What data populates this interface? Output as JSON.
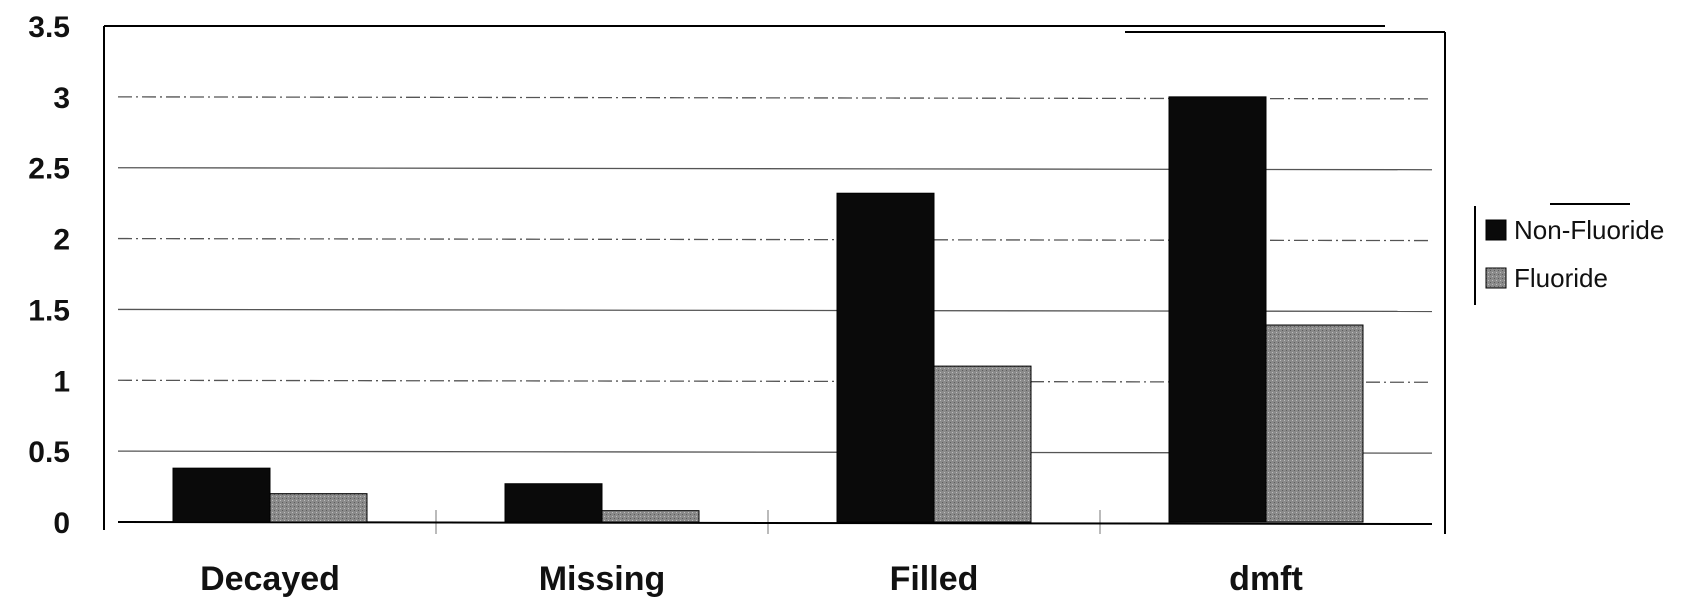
{
  "chart_data": {
    "type": "bar",
    "categories": [
      "Decayed",
      "Missing",
      "Filled",
      "dmft"
    ],
    "series": [
      {
        "name": "Non-Fluoride",
        "values": [
          0.38,
          0.27,
          2.32,
          3.0
        ],
        "color": "#0a0a0a"
      },
      {
        "name": "Fluoride",
        "values": [
          0.2,
          0.08,
          1.1,
          1.39
        ],
        "color": "#8a8a8a"
      }
    ],
    "y_ticks": [
      "0",
      "0.5",
      "1",
      "1.5",
      "2",
      "2.5",
      "3",
      "3.5"
    ],
    "ylim": [
      0,
      3.5
    ],
    "grid": true,
    "legend_position": "right"
  }
}
